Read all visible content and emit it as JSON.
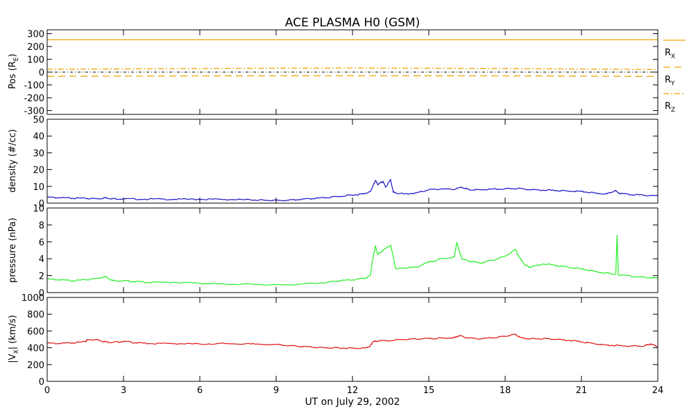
{
  "chart_data": {
    "title": "ACE PLASMA H0 (GSM)",
    "type": "line",
    "xlabel": "UT on July 29, 2002",
    "xlim": [
      0,
      24
    ],
    "xticks": [
      0,
      3,
      6,
      9,
      12,
      15,
      18,
      21,
      24
    ],
    "panels": [
      {
        "id": "pos",
        "ylabel_main": "Pos (R",
        "ylabel_sub": "E",
        "ylabel_tail": ")",
        "ylim": [
          -330,
          330
        ],
        "yticks": [
          -300,
          -200,
          -100,
          0,
          100,
          200,
          300
        ],
        "zero_line": true,
        "series": [
          {
            "name": "R",
            "sub": "X",
            "color": "#f0a500",
            "dash": "none",
            "values": [
              [
                0,
                252
              ],
              [
                24,
                252
              ]
            ]
          },
          {
            "name": "R",
            "sub": "Y",
            "color": "#f0a500",
            "dash": "10,6",
            "values": [
              [
                0,
                -33
              ],
              [
                6,
                -30
              ],
              [
                12,
                -28
              ],
              [
                18,
                -29
              ],
              [
                24,
                -34
              ]
            ]
          },
          {
            "name": "R",
            "sub": "Z",
            "color": "#f0a500",
            "dash": "8,3,2,3",
            "values": [
              [
                0,
                22
              ],
              [
                6,
                28
              ],
              [
                12,
                32
              ],
              [
                18,
                28
              ],
              [
                24,
                20
              ]
            ]
          }
        ]
      },
      {
        "id": "density",
        "ylabel_main": "density (#/cc)",
        "ylim": [
          0,
          50
        ],
        "yticks": [
          0,
          10,
          20,
          30,
          40,
          50
        ],
        "series": [
          {
            "color": "#1a10c8",
            "values": [
              [
                0,
                3.5
              ],
              [
                0.5,
                3.2
              ],
              [
                1,
                3.0
              ],
              [
                1.5,
                2.8
              ],
              [
                2,
                2.6
              ],
              [
                2.3,
                3.2
              ],
              [
                2.6,
                2.6
              ],
              [
                3,
                2.5
              ],
              [
                4,
                2.4
              ],
              [
                5,
                2.3
              ],
              [
                6,
                2.3
              ],
              [
                7,
                2.2
              ],
              [
                8,
                2.0
              ],
              [
                8.5,
                1.8
              ],
              [
                9,
                1.6
              ],
              [
                9.5,
                1.8
              ],
              [
                10,
                2.3
              ],
              [
                10.5,
                2.8
              ],
              [
                11,
                3.3
              ],
              [
                11.5,
                4.0
              ],
              [
                12,
                4.8
              ],
              [
                12.4,
                5.5
              ],
              [
                12.7,
                6.8
              ],
              [
                12.8,
                10
              ],
              [
                12.9,
                13.5
              ],
              [
                13.0,
                11
              ],
              [
                13.2,
                13
              ],
              [
                13.3,
                9.5
              ],
              [
                13.5,
                14
              ],
              [
                13.6,
                6.5
              ],
              [
                14,
                5.5
              ],
              [
                14.5,
                6
              ],
              [
                15,
                8
              ],
              [
                15.5,
                8.5
              ],
              [
                16,
                8.2
              ],
              [
                16.3,
                9.5
              ],
              [
                16.6,
                7.8
              ],
              [
                17,
                8
              ],
              [
                17.5,
                8.3
              ],
              [
                18,
                8.5
              ],
              [
                18.5,
                8.8
              ],
              [
                19,
                8
              ],
              [
                19.5,
                7.8
              ],
              [
                20,
                7.5
              ],
              [
                20.5,
                7.2
              ],
              [
                21,
                7
              ],
              [
                21.5,
                6
              ],
              [
                22,
                5.5
              ],
              [
                22.3,
                7.5
              ],
              [
                22.5,
                5.8
              ],
              [
                23,
                5
              ],
              [
                23.5,
                4.6
              ],
              [
                24,
                4.3
              ]
            ]
          }
        ]
      },
      {
        "id": "pressure",
        "ylabel_main": "pressure (nPa)",
        "ylim": [
          0,
          10
        ],
        "yticks": [
          0,
          2,
          4,
          6,
          8,
          10
        ],
        "series": [
          {
            "color": "#22ee22",
            "values": [
              [
                0,
                1.6
              ],
              [
                0.5,
                1.5
              ],
              [
                1,
                1.4
              ],
              [
                1.5,
                1.5
              ],
              [
                2,
                1.7
              ],
              [
                2.3,
                1.9
              ],
              [
                2.6,
                1.4
              ],
              [
                3,
                1.4
              ],
              [
                3.5,
                1.3
              ],
              [
                4,
                1.2
              ],
              [
                5,
                1.2
              ],
              [
                6,
                1.1
              ],
              [
                7,
                1.0
              ],
              [
                8,
                1.0
              ],
              [
                9,
                0.9
              ],
              [
                10,
                1.0
              ],
              [
                11,
                1.2
              ],
              [
                11.5,
                1.4
              ],
              [
                12,
                1.5
              ],
              [
                12.5,
                1.7
              ],
              [
                12.7,
                2.0
              ],
              [
                12.8,
                4.0
              ],
              [
                12.9,
                5.5
              ],
              [
                13.0,
                4.5
              ],
              [
                13.2,
                5.0
              ],
              [
                13.5,
                5.6
              ],
              [
                13.7,
                2.8
              ],
              [
                14,
                2.9
              ],
              [
                14.5,
                3.0
              ],
              [
                15,
                3.6
              ],
              [
                15.5,
                4.0
              ],
              [
                16,
                4.2
              ],
              [
                16.1,
                5.9
              ],
              [
                16.3,
                4.0
              ],
              [
                16.6,
                3.7
              ],
              [
                17,
                3.5
              ],
              [
                17.5,
                3.8
              ],
              [
                18,
                4.3
              ],
              [
                18.4,
                5.1
              ],
              [
                18.6,
                4.0
              ],
              [
                18.8,
                3.2
              ],
              [
                19,
                3.0
              ],
              [
                19.5,
                3.4
              ],
              [
                20,
                3.2
              ],
              [
                20.5,
                3.0
              ],
              [
                21,
                2.8
              ],
              [
                21.5,
                2.5
              ],
              [
                22,
                2.3
              ],
              [
                22.35,
                2.2
              ],
              [
                22.4,
                6.8
              ],
              [
                22.45,
                2.1
              ],
              [
                23,
                1.9
              ],
              [
                23.5,
                1.8
              ],
              [
                24,
                1.7
              ]
            ]
          }
        ]
      },
      {
        "id": "vx",
        "ylabel_main": "|V",
        "ylabel_sub": "X",
        "ylabel_tail": "| (km/s)",
        "ylim": [
          0,
          1000
        ],
        "yticks": [
          0,
          200,
          400,
          600,
          800,
          1000
        ],
        "series": [
          {
            "color": "#dd1111",
            "values": [
              [
                0,
                455
              ],
              [
                0.5,
                450
              ],
              [
                1,
                460
              ],
              [
                1.5,
                470
              ],
              [
                1.6,
                500
              ],
              [
                2,
                495
              ],
              [
                2.3,
                470
              ],
              [
                2.6,
                465
              ],
              [
                3,
                475
              ],
              [
                3.5,
                460
              ],
              [
                4,
                450
              ],
              [
                5,
                450
              ],
              [
                6,
                445
              ],
              [
                7,
                450
              ],
              [
                8,
                445
              ],
              [
                9,
                440
              ],
              [
                9.5,
                425
              ],
              [
                10,
                415
              ],
              [
                10.5,
                405
              ],
              [
                11,
                400
              ],
              [
                11.5,
                398
              ],
              [
                12,
                395
              ],
              [
                12.5,
                398
              ],
              [
                12.7,
                420
              ],
              [
                12.8,
                470
              ],
              [
                13,
                480
              ],
              [
                13.5,
                485
              ],
              [
                14,
                500
              ],
              [
                14.5,
                505
              ],
              [
                15,
                510
              ],
              [
                15.5,
                515
              ],
              [
                16,
                520
              ],
              [
                16.2,
                545
              ],
              [
                16.5,
                520
              ],
              [
                17,
                505
              ],
              [
                17.5,
                520
              ],
              [
                18,
                535
              ],
              [
                18.4,
                560
              ],
              [
                18.6,
                520
              ],
              [
                19,
                505
              ],
              [
                19.5,
                510
              ],
              [
                20,
                500
              ],
              [
                20.5,
                490
              ],
              [
                21,
                470
              ],
              [
                21.5,
                450
              ],
              [
                22,
                430
              ],
              [
                22.5,
                425
              ],
              [
                23,
                420
              ],
              [
                23.5,
                425
              ],
              [
                23.7,
                445
              ],
              [
                24,
                415
              ]
            ]
          }
        ]
      }
    ]
  }
}
